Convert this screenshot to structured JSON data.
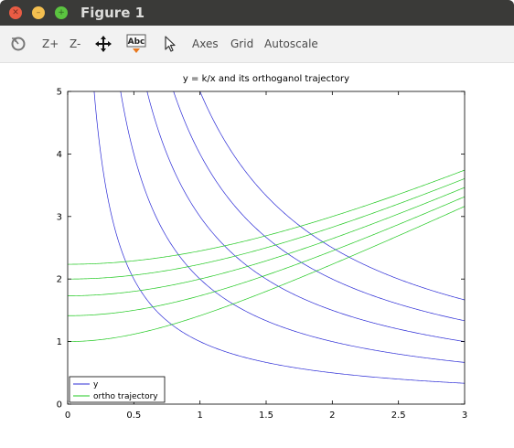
{
  "window": {
    "title": "Figure 1"
  },
  "toolbar": {
    "rotate_icon": "rotate-icon",
    "zoom_in_label": "Z+",
    "zoom_out_label": "Z-",
    "pan_icon": "pan-arrows-icon",
    "text_icon_label": "Abc",
    "select_icon": "pointer-icon",
    "axes_label": "Axes",
    "grid_label": "Grid",
    "autoscale_label": "Autoscale"
  },
  "colors": {
    "series_y": "#2b2bd6",
    "series_ortho": "#22c922",
    "titlebar": "#3a3a38"
  },
  "chart_data": {
    "type": "line",
    "title": "y = k/x and its orthoganol trajectory",
    "xlabel": "",
    "ylabel": "",
    "xlim": [
      0,
      3
    ],
    "ylim": [
      0,
      5
    ],
    "xticks": [
      "0",
      "0.5",
      "1",
      "1.5",
      "2",
      "2.5",
      "3"
    ],
    "yticks": [
      "0",
      "1",
      "2",
      "3",
      "4",
      "5"
    ],
    "grid": false,
    "legend_position": "bottom-left",
    "legend": [
      "y",
      "ortho trajectory"
    ],
    "series": [
      {
        "name": "y",
        "color": "#2b2bd6",
        "formula": "y = k/x",
        "k_values": [
          1,
          2,
          3,
          4,
          5
        ]
      },
      {
        "name": "ortho trajectory",
        "color": "#22c922",
        "formula": "y = sqrt(x^2 + c)",
        "y_at_x0": [
          1,
          1.414,
          1.732,
          2,
          2.236
        ]
      }
    ]
  }
}
